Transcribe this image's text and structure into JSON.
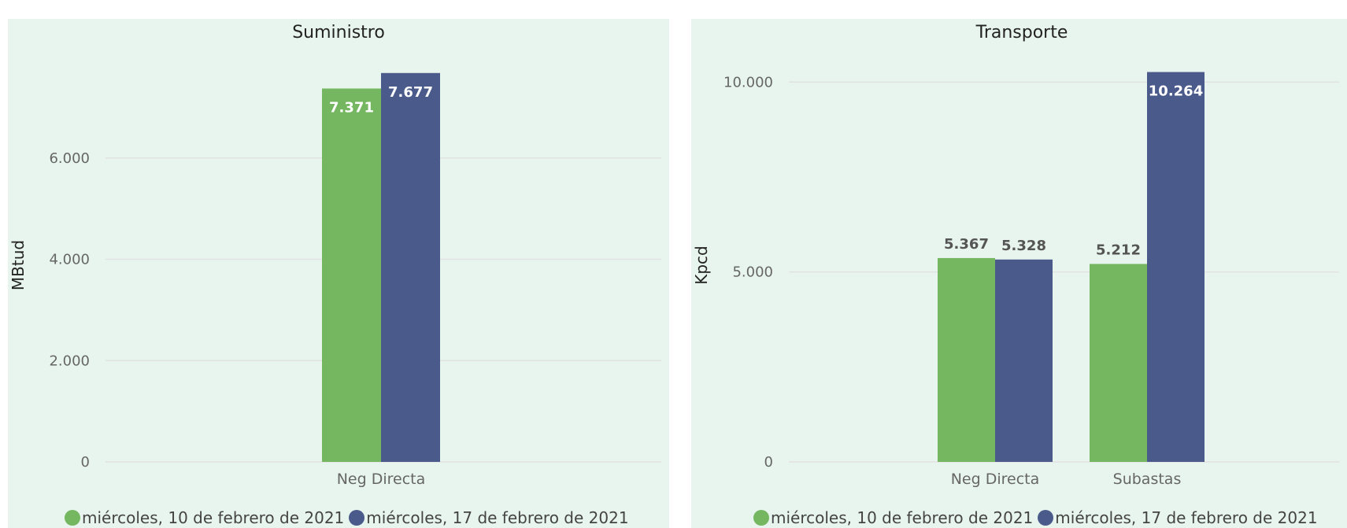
{
  "colors": {
    "series1": "#74b760",
    "series2": "#4a5a8a",
    "grid": "#e2e2e2",
    "tick": "#666666",
    "panel": "#e8f5ef"
  },
  "chart_data": [
    {
      "type": "bar",
      "title": "Suministro",
      "ylabel": "MBtud",
      "ylim": [
        0,
        8000
      ],
      "yticks": [
        0,
        2000,
        4000,
        6000
      ],
      "yticks_labels": [
        "0",
        "2.000",
        "4.000",
        "6.000"
      ],
      "categories": [
        "Neg Directa"
      ],
      "series": [
        {
          "name": "miércoles, 10 de febrero de 2021",
          "values": [
            7371
          ],
          "labels": [
            "7.371"
          ]
        },
        {
          "name": "miércoles, 17 de febrero de 2021",
          "values": [
            7677
          ],
          "labels": [
            "7.677"
          ]
        }
      ]
    },
    {
      "type": "bar",
      "title": "Transporte",
      "ylabel": "Kpcd",
      "ylim": [
        0,
        11000
      ],
      "yticks": [
        0,
        5000,
        10000
      ],
      "yticks_labels": [
        "0",
        "5.000",
        "10.000"
      ],
      "categories": [
        "Neg Directa",
        "Subastas"
      ],
      "series": [
        {
          "name": "miércoles, 10 de febrero de 2021",
          "values": [
            5367,
            5212
          ],
          "labels": [
            "5.367",
            "5.212"
          ]
        },
        {
          "name": "miércoles, 17 de febrero de 2021",
          "values": [
            5328,
            10264
          ],
          "labels": [
            "5.328",
            "10.264"
          ]
        }
      ]
    }
  ],
  "legend": {
    "items": [
      "miércoles, 10 de febrero de 2021",
      "miércoles, 17 de febrero de 2021"
    ]
  }
}
